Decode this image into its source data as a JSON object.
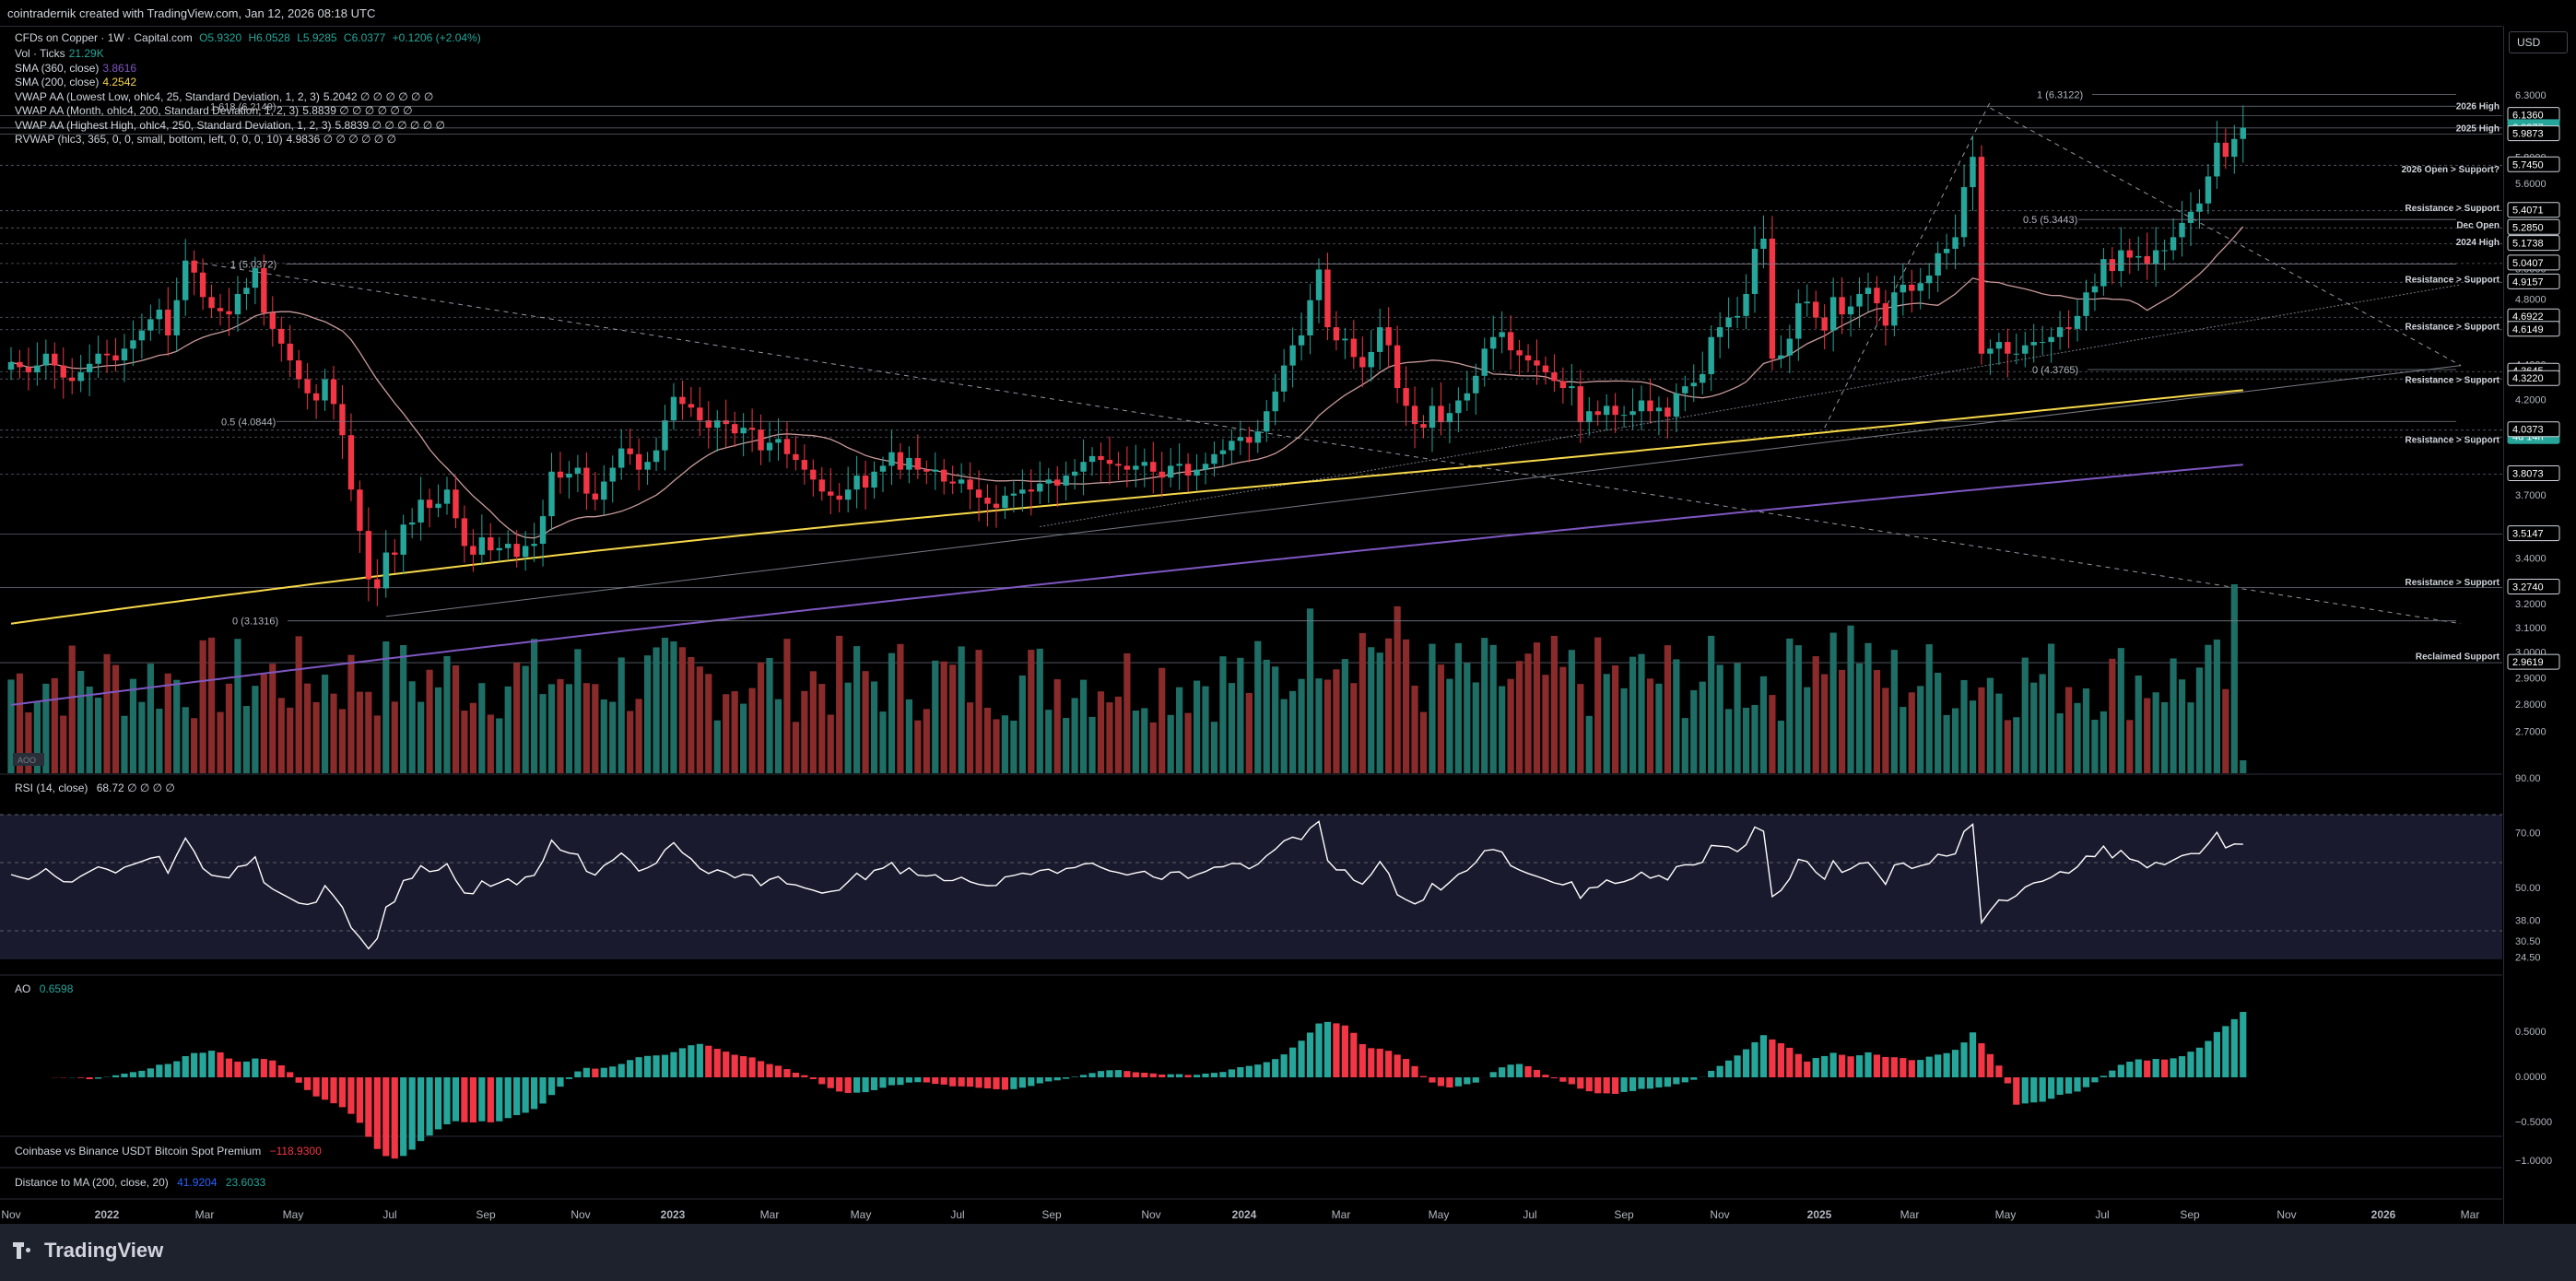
{
  "header": {
    "title": "cointradernik created with TradingView.com, Jan 12, 2026 08:18 UTC"
  },
  "toolbar": {
    "currency": "USD"
  },
  "legend": {
    "symbol": "CFDs on Copper · 1W · Capital.com",
    "ohlc": {
      "o": "O5.9320",
      "h": "H6.0528",
      "l": "L5.9285",
      "c": "C6.0377",
      "chg": "+0.1206 (+2.04%)"
    },
    "lines": [
      {
        "name": "Vol · Ticks",
        "value": "21.29K",
        "color": "#26a69a"
      },
      {
        "name": "SMA (360, close)",
        "value": "3.8616",
        "color": "#7e57c2"
      },
      {
        "name": "SMA (200, close)",
        "value": "4.2542",
        "color": "#f7d84a"
      },
      {
        "name": "VWAP AA (Lowest Low, ohlc4, 25, Standard Deviation, 1, 2, 3)",
        "value": "5.2042 ∅ ∅ ∅ ∅ ∅ ∅",
        "color": "#d1d4dc"
      },
      {
        "name": "VWAP AA (Month, ohlc4, 200, Standard Deviation, 1, 2, 3)",
        "value": "5.8839 ∅ ∅ ∅ ∅ ∅ ∅",
        "color": "#d1d4dc"
      },
      {
        "name": "VWAP AA (Highest High, ohlc4, 250, Standard Deviation, 1, 2, 3)",
        "value": "5.8839 ∅ ∅ ∅ ∅ ∅ ∅",
        "color": "#d1d4dc"
      },
      {
        "name": "RVWAP (hlc3, 365, 0, 0, small, bottom, left, 0, 0, 0, 10)",
        "value": "4.9836 ∅ ∅ ∅ ∅ ∅ ∅",
        "color": "#d1d4dc"
      }
    ]
  },
  "panes": {
    "rsi_label": "RSI (14, close)",
    "rsi_value": "68.72 ∅ ∅ ∅ ∅",
    "ao_label": "AO",
    "ao_value": "0.6598",
    "premium_label": "Coinbase vs Binance USDT Bitcoin Spot Premium",
    "premium_value": "−118.9300",
    "dist_label": "Distance to MA (200, close, 20)",
    "dist_value1": "41.9204",
    "dist_value2": "23.6033",
    "log_badge": "AOO"
  },
  "colors": {
    "up": "#26a69a",
    "down": "#f23645",
    "vol_up": "#1f6e66",
    "vol_down": "#8a2b2b",
    "sma200": "#f7d84a",
    "sma360": "#7e57c2",
    "vwap": "#c99a9a",
    "rsi_bg": "#1a1830"
  },
  "chart_data": [
    {
      "type": "candlestick",
      "title": "CFDs on Copper · 1W · Capital.com",
      "scale": "log",
      "ylim": [
        2.62,
        6.45
      ],
      "x_tick_labels": [
        "Nov",
        "2022",
        "Mar",
        "May",
        "Jul",
        "Sep",
        "Nov",
        "2023",
        "Mar",
        "May",
        "Jul",
        "Sep",
        "Nov",
        "2024",
        "Mar",
        "May",
        "Jul",
        "Sep",
        "Nov",
        "2025",
        "Mar",
        "May",
        "Jul",
        "Sep",
        "Nov",
        "2026",
        "Mar"
      ],
      "y_ticks": [
        "6.3000",
        "6.0000",
        "5.8000",
        "5.6000",
        "5.4000",
        "5.2000",
        "5.0000",
        "4.8000",
        "4.6000",
        "4.4000",
        "4.2000",
        "4.0000",
        "3.8000",
        "3.7000",
        "3.5000",
        "3.4000",
        "3.2000",
        "3.1000",
        "3.0000",
        "2.9000",
        "2.8000",
        "2.7000"
      ],
      "price_labels": [
        {
          "text": "6.1360",
          "bg": "#000"
        },
        {
          "text": "6.0377",
          "bg": "#26a69a"
        },
        {
          "text": "4d 14h",
          "bg": "#26a69a"
        },
        {
          "text": "5.9873",
          "bg": "#000"
        },
        {
          "text": "5.7450",
          "bg": "#000"
        },
        {
          "text": "5.4071",
          "bg": "#000"
        },
        {
          "text": "5.2850",
          "bg": "#000"
        },
        {
          "text": "5.1738",
          "bg": "#000"
        },
        {
          "text": "5.0407",
          "bg": "#000"
        },
        {
          "text": "4.9157",
          "bg": "#000"
        },
        {
          "text": "4.6922",
          "bg": "#000"
        },
        {
          "text": "4.6149",
          "bg": "#000"
        },
        {
          "text": "4.3645",
          "bg": "#000"
        },
        {
          "text": "4.3220",
          "bg": "#000"
        },
        {
          "text": "4.0373",
          "bg": "#000"
        },
        {
          "text": "3.8073",
          "bg": "#000"
        },
        {
          "text": "3.5147",
          "bg": "#000"
        },
        {
          "text": "3.2740",
          "bg": "#000"
        },
        {
          "text": "2.9619",
          "bg": "#000"
        }
      ],
      "annotations": [
        {
          "text": "1 (6.3122)",
          "price": 6.3122
        },
        {
          "text": "1.618 (6.2149)",
          "price": 6.2149
        },
        {
          "text": "0.5 (5.3443)",
          "price": 5.3443
        },
        {
          "text": "1 (5.0372)",
          "price": 5.0372
        },
        {
          "text": "0 (4.3765)",
          "price": 4.3765
        },
        {
          "text": "0.5 (4.0844)",
          "price": 4.0844
        },
        {
          "text": "0 (3.1316)",
          "price": 3.1316
        }
      ],
      "level_notes": [
        {
          "text": "2026 High",
          "price": 6.22
        },
        {
          "text": "2025 High",
          "price": 6.04
        },
        {
          "text": "2026 Open > Support?",
          "price": 5.72
        },
        {
          "text": "Resistance > Support",
          "price": 5.43
        },
        {
          "text": "Dec Open",
          "price": 5.31
        },
        {
          "text": "2024 High",
          "price": 5.19
        },
        {
          "text": "Resistance > Support",
          "price": 4.94
        },
        {
          "text": "Resistance > Support",
          "price": 4.64
        },
        {
          "text": "Resistance > Support",
          "price": 4.32
        },
        {
          "text": "Resistance > Support",
          "price": 3.99
        },
        {
          "text": "Resistance > Support",
          "price": 3.3
        },
        {
          "text": "Reclaimed Support",
          "price": 2.99
        }
      ],
      "series": [
        {
          "name": "Copper",
          "values": [
            4.42,
            4.39,
            4.36,
            4.4,
            4.47,
            4.4,
            4.33,
            4.31,
            4.36,
            4.41,
            4.47,
            4.46,
            4.43,
            4.5,
            4.55,
            4.61,
            4.68,
            4.74,
            4.58,
            4.8,
            5.06,
            4.98,
            4.82,
            4.75,
            4.73,
            4.71,
            4.84,
            4.88,
            5.01,
            4.72,
            4.62,
            4.53,
            4.43,
            4.32,
            4.24,
            4.2,
            4.32,
            4.18,
            4.01,
            3.73,
            3.53,
            3.31,
            3.27,
            3.43,
            3.42,
            3.56,
            3.57,
            3.68,
            3.64,
            3.66,
            3.73,
            3.59,
            3.46,
            3.42,
            3.5,
            3.44,
            3.45,
            3.47,
            3.41,
            3.46,
            3.47,
            3.6,
            3.82,
            3.79,
            3.81,
            3.84,
            3.71,
            3.68,
            3.77,
            3.84,
            3.94,
            3.91,
            3.83,
            3.87,
            3.93,
            4.09,
            4.22,
            4.18,
            4.16,
            4.09,
            4.05,
            4.09,
            4.07,
            4.02,
            4.05,
            4.04,
            3.93,
            3.97,
            3.99,
            3.91,
            3.88,
            3.83,
            3.78,
            3.72,
            3.7,
            3.68,
            3.73,
            3.8,
            3.74,
            3.82,
            3.85,
            3.92,
            3.83,
            3.89,
            3.83,
            3.82,
            3.83,
            3.77,
            3.76,
            3.78,
            3.73,
            3.69,
            3.66,
            3.64,
            3.7,
            3.71,
            3.73,
            3.72,
            3.76,
            3.78,
            3.75,
            3.8,
            3.82,
            3.87,
            3.9,
            3.88,
            3.86,
            3.85,
            3.83,
            3.85,
            3.87,
            3.82,
            3.79,
            3.85,
            3.86,
            3.8,
            3.83,
            3.86,
            3.91,
            3.93,
            3.98,
            4.0,
            3.97,
            4.03,
            4.14,
            4.25,
            4.4,
            4.52,
            4.58,
            4.8,
            5.0,
            4.63,
            4.55,
            4.56,
            4.45,
            4.39,
            4.48,
            4.63,
            4.52,
            4.27,
            4.17,
            4.07,
            4.05,
            4.17,
            4.08,
            4.13,
            4.2,
            4.24,
            4.34,
            4.5,
            4.57,
            4.6,
            4.49,
            4.46,
            4.43,
            4.4,
            4.36,
            4.31,
            4.27,
            4.28,
            4.08,
            4.14,
            4.12,
            4.17,
            4.12,
            4.12,
            4.14,
            4.2,
            4.14,
            4.16,
            4.11,
            4.24,
            4.28,
            4.3,
            4.35,
            4.57,
            4.63,
            4.69,
            4.7,
            4.84,
            5.14,
            5.21,
            4.44,
            4.46,
            4.56,
            4.78,
            4.79,
            4.69,
            4.61,
            4.82,
            4.71,
            4.76,
            4.84,
            4.88,
            4.78,
            4.64,
            4.85,
            4.9,
            4.86,
            4.91,
            4.96,
            5.11,
            5.14,
            5.22,
            5.58,
            5.81,
            4.47,
            4.5,
            4.54,
            4.47,
            4.47,
            4.52,
            4.54,
            4.54,
            4.57,
            4.63,
            4.62,
            4.7,
            4.85,
            4.89,
            5.07,
            4.99,
            5.13,
            5.08,
            5.09,
            5.04,
            5.13,
            5.13,
            5.22,
            5.32,
            5.4,
            5.46,
            5.66,
            5.92,
            5.81,
            5.95,
            6.04
          ]
        },
        {
          "name": "SMA (200, close)",
          "last": 4.2542
        },
        {
          "name": "SMA (360, close)",
          "last": 3.8616
        }
      ]
    },
    {
      "type": "bar",
      "title": "Vol · Ticks",
      "last": "21.29K"
    },
    {
      "type": "line",
      "title": "RSI (14, close)",
      "ylim": [
        20,
        90
      ],
      "y_ticks": [
        "90.00",
        "70.00",
        "50.00",
        "38.00",
        "30.50",
        "24.50"
      ],
      "last": 68.72
    },
    {
      "type": "bar",
      "title": "AO",
      "y_ticks": [
        "0.5000",
        "0.0000",
        "−0.5000",
        "−1.0000"
      ],
      "last": 0.6598
    }
  ]
}
